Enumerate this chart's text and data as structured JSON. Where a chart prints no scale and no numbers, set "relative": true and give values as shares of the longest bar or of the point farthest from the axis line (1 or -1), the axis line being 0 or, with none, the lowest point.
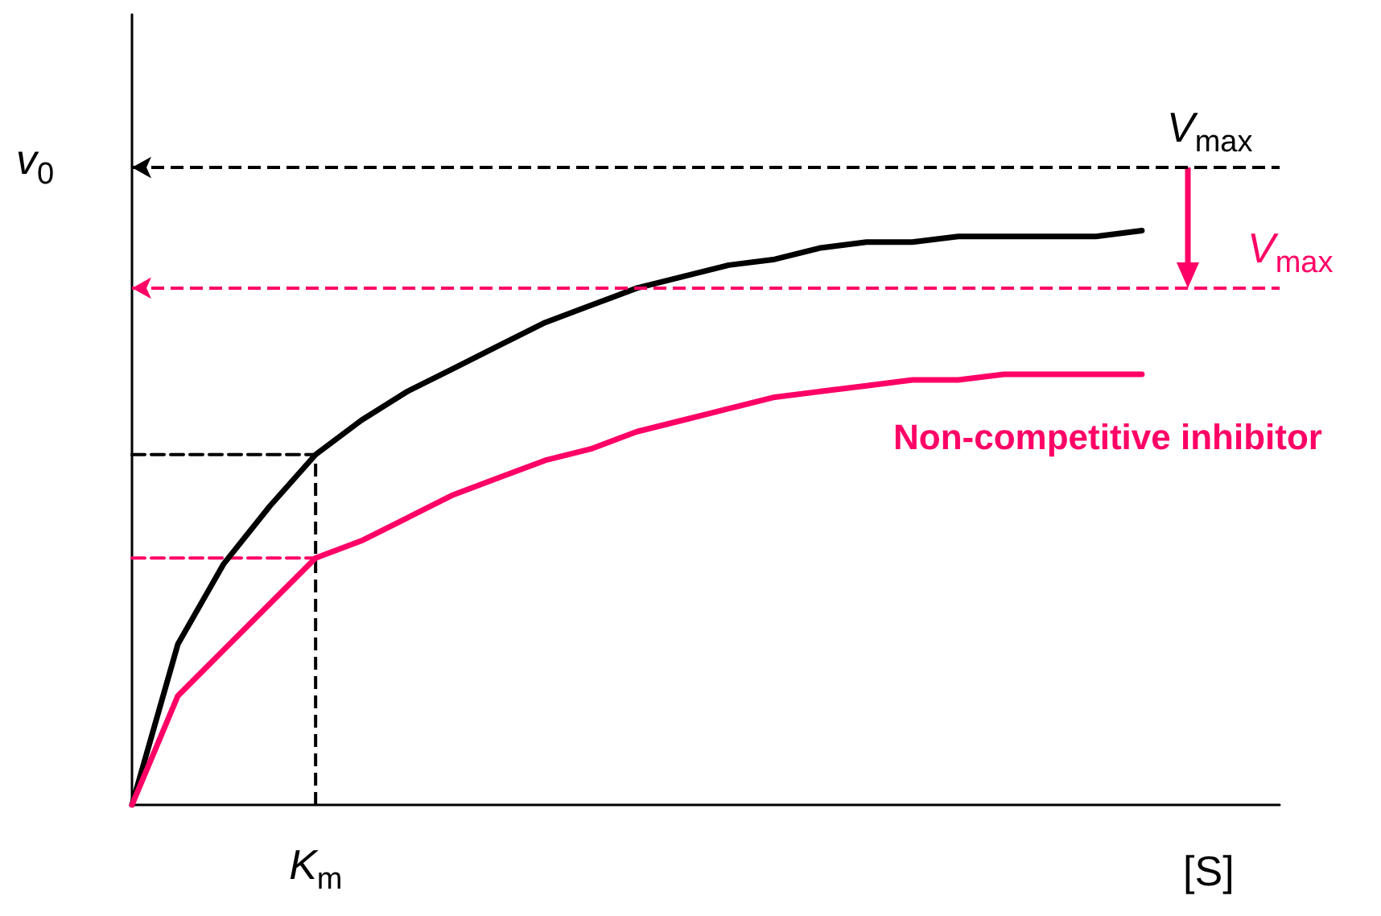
{
  "chart_data": {
    "type": "line",
    "relative": true,
    "xlabel": "[S]",
    "ylabel": "v$_{0}$",
    "categories": [
      null,
      null,
      null,
      null,
      null,
      null,
      null,
      null,
      null,
      null,
      null,
      null,
      null,
      null,
      null,
      null,
      null,
      null,
      null,
      null,
      null,
      null,
      null,
      null,
      null,
      null
    ],
    "grid": false,
    "legend": false,
    "marker": "none",
    "annotations": [
      "K$_{m}$"
    ],
    "series": [
      {
        "color": "#000000",
        "values": [
          0,
          0.28,
          0.42,
          0.52,
          0.61,
          0.67,
          0.72,
          0.76,
          0.8,
          0.84,
          0.87,
          0.9,
          0.92,
          0.94,
          0.95,
          0.97,
          0.98,
          0.98,
          0.99,
          0.99,
          0.99,
          0.99,
          1.0,
          null,
          null,
          null
        ]
      },
      {
        "name": "Non-competitive inhibitor",
        "color": "#ff0066",
        "values": [
          0,
          0.19,
          0.27,
          0.35,
          0.43,
          0.46,
          0.5,
          0.54,
          0.57,
          0.6,
          0.62,
          0.65,
          0.67,
          0.69,
          0.71,
          0.72,
          0.73,
          0.74,
          0.74,
          0.75,
          0.75,
          0.75,
          0.75,
          null,
          null,
          null
        ]
      },
      {
        "color": "#000000",
        "line_style": "dashed",
        "values": [
          0.61,
          0.61,
          0.61,
          0.61,
          0.61,
          null,
          null,
          null,
          null,
          null,
          null,
          null,
          null,
          null,
          null,
          null,
          null,
          null,
          null,
          null,
          null,
          null,
          null,
          null,
          null,
          null
        ]
      },
      {
        "color": "#ff0066",
        "line_style": "dashed",
        "values": [
          0.43,
          0.43,
          0.43,
          0.43,
          0.43,
          null,
          null,
          null,
          null,
          null,
          null,
          null,
          null,
          null,
          null,
          null,
          null,
          null,
          null,
          null,
          null,
          null,
          null,
          null,
          null,
          null
        ]
      }
    ],
    "ref_lines": [
      {
        "axis": "y",
        "value": 1.11,
        "label": "V$_{max}$",
        "color": "#000000",
        "line_style": "dashed"
      },
      {
        "axis": "y",
        "value": 0.9,
        "label": "V$_{max}$",
        "color": "#ff0066",
        "line_style": "dashed"
      }
    ]
  }
}
